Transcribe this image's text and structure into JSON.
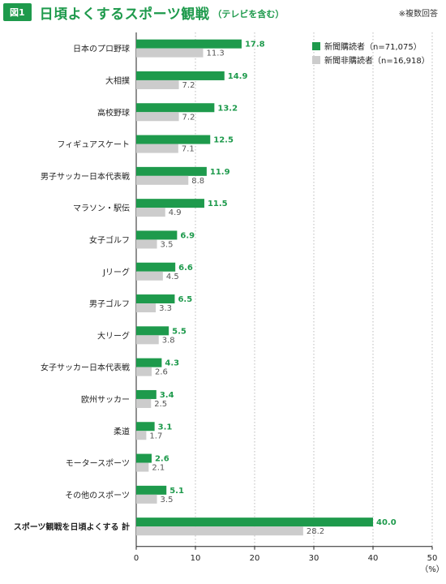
{
  "header": {
    "fig_label": "図1",
    "title": "日頃よくするスポーツ観戦",
    "subtitle": "（テレビを含む）",
    "note": "※複数回答"
  },
  "colors": {
    "main": "#1e9a4c",
    "sub": "#cccccc"
  },
  "chart_data": {
    "type": "bar",
    "orientation": "horizontal",
    "categories": [
      "日本のプロ野球",
      "大相撲",
      "高校野球",
      "フィギュアスケート",
      "男子サッカー日本代表戦",
      "マラソン・駅伝",
      "女子ゴルフ",
      "Jリーグ",
      "男子ゴルフ",
      "大リーグ",
      "女子サッカー日本代表戦",
      "欧州サッカー",
      "柔道",
      "モータースポーツ",
      "その他のスポーツ",
      "スポーツ観戦を日頃よくする 計"
    ],
    "series": [
      {
        "name": "新聞購読者（n=71,075）",
        "values": [
          17.8,
          14.9,
          13.2,
          12.5,
          11.9,
          11.5,
          6.9,
          6.6,
          6.5,
          5.5,
          4.3,
          3.4,
          3.1,
          2.6,
          5.1,
          40.0
        ]
      },
      {
        "name": "新聞非購読者（n=16,918）",
        "values": [
          11.3,
          7.2,
          7.2,
          7.1,
          8.8,
          4.9,
          3.5,
          4.5,
          3.3,
          3.8,
          2.6,
          2.5,
          1.7,
          2.1,
          3.5,
          28.2
        ]
      }
    ],
    "xlim": [
      0,
      50
    ],
    "xticks": [
      "0",
      "10",
      "20",
      "30",
      "40",
      "50"
    ],
    "xunit": "（%）",
    "legend": "top-right",
    "grid": true
  }
}
